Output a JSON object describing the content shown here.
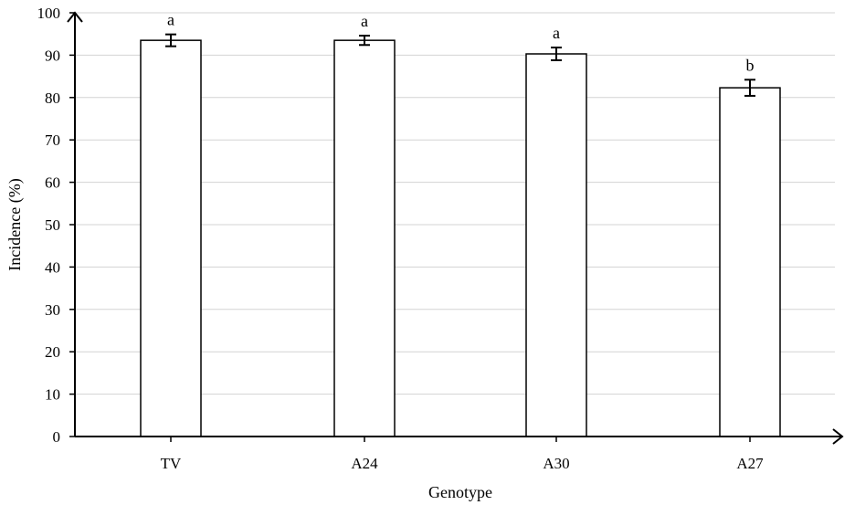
{
  "chart_data": {
    "type": "bar",
    "categories": [
      "TV",
      "A24",
      "A30",
      "A27"
    ],
    "values": [
      93.5,
      93.5,
      90.3,
      82.3
    ],
    "errors": [
      1.4,
      1.1,
      1.5,
      1.9
    ],
    "significance": [
      "a",
      "a",
      "a",
      "b"
    ],
    "xlabel": "Genotype",
    "ylabel": "Incidence (%)",
    "ylim": [
      0,
      100
    ],
    "yticks": [
      "0",
      "10",
      "20",
      "30",
      "40",
      "50",
      "60",
      "70",
      "80",
      "90",
      "100"
    ],
    "grid": true,
    "legend": "none"
  },
  "colors": {
    "bar_fill": "#ffffff",
    "bar_stroke": "#000000",
    "grid": "#d3d3d3",
    "axis": "#000000"
  }
}
